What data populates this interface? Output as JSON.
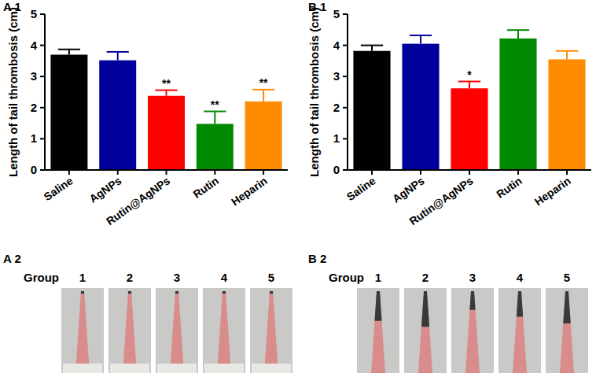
{
  "chart_data": [
    {
      "type": "bar",
      "title": "A 1",
      "y_label": "Length of tail thrombosis (cm)",
      "categories": [
        "Saline",
        "AgNPs",
        "Rutin@AgNPs",
        "Rutin",
        "Heparin"
      ],
      "values": [
        3.7,
        3.52,
        2.38,
        1.48,
        2.2
      ],
      "errors": [
        0.17,
        0.27,
        0.18,
        0.4,
        0.38
      ],
      "colors": [
        "#000000",
        "#00009c",
        "#ff0000",
        "#008a00",
        "#ff8c00"
      ],
      "ylim": [
        0,
        5
      ],
      "yticks": [
        0,
        1,
        2,
        3,
        4,
        5
      ],
      "grid": false,
      "annotations": [
        {
          "x": "Rutin@AgNPs",
          "text": "**"
        },
        {
          "x": "Rutin",
          "text": "**"
        },
        {
          "x": "Heparin",
          "text": "**"
        }
      ]
    },
    {
      "type": "bar",
      "title": "B 1",
      "y_label": "Length of tail thrombosis (cm)",
      "categories": [
        "Saline",
        "AgNPs",
        "Rutin@AgNPs",
        "Rutin",
        "Heparin"
      ],
      "values": [
        3.82,
        4.05,
        2.62,
        4.22,
        3.55
      ],
      "errors": [
        0.18,
        0.27,
        0.22,
        0.27,
        0.27
      ],
      "colors": [
        "#000000",
        "#00009c",
        "#ff0000",
        "#008a00",
        "#ff8c00"
      ],
      "ylim": [
        0,
        5
      ],
      "yticks": [
        0,
        1,
        2,
        3,
        4,
        5
      ],
      "grid": false,
      "annotations": [
        {
          "x": "Rutin@AgNPs",
          "text": "*"
        }
      ]
    }
  ],
  "photos": [
    {
      "label": "A 2",
      "group_label": "Group",
      "groups": [
        "1",
        "2",
        "3",
        "4",
        "5"
      ]
    },
    {
      "label": "B 2",
      "group_label": "Group",
      "groups": [
        "1",
        "2",
        "3",
        "4",
        "5"
      ]
    }
  ]
}
